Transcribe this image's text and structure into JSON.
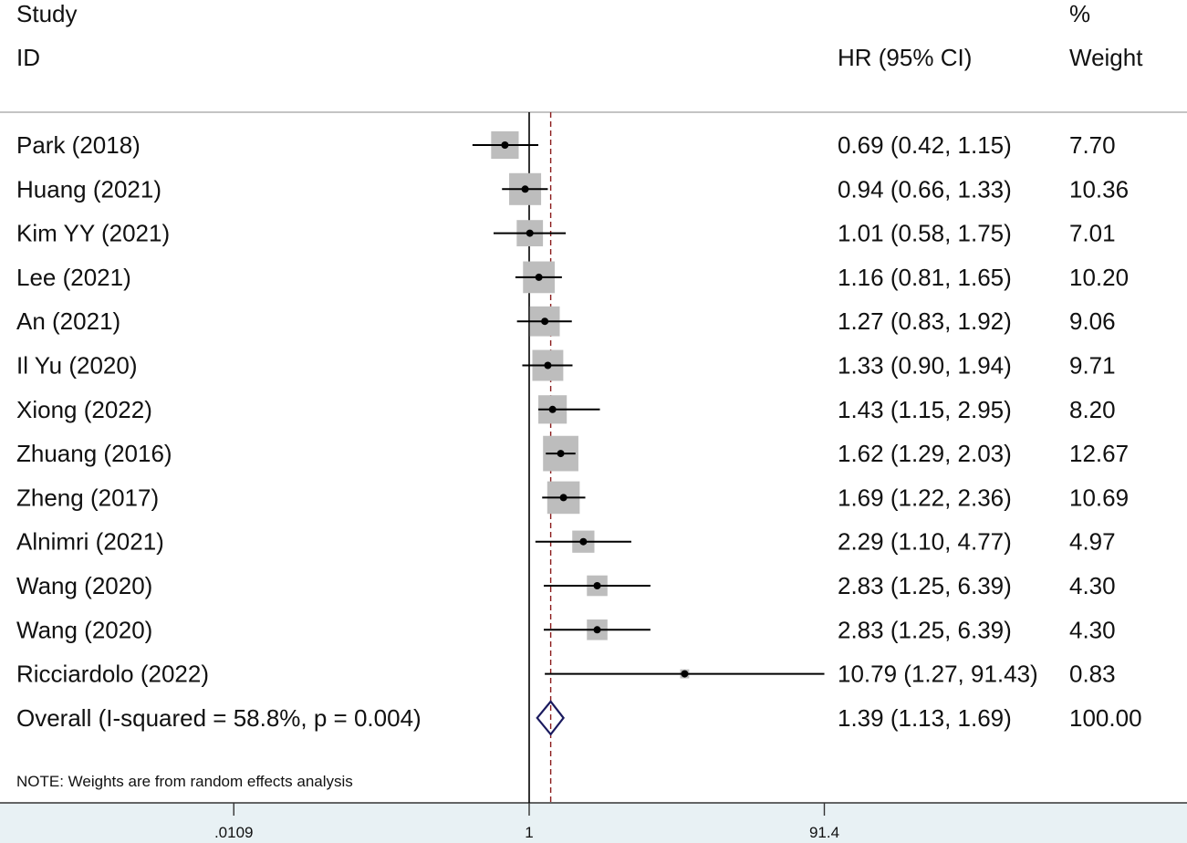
{
  "headers": {
    "study_line1": "Study",
    "study_line2": "ID",
    "effect": "HR (95% CI)",
    "weight_line1": "%",
    "weight_line2": "Weight"
  },
  "note": "NOTE: Weights are from random effects analysis",
  "colors": {
    "box": "#bdbdbd",
    "line": "#000000",
    "overall_diamond": "#1a1a5e",
    "pooled_dashed_line": "#8b1a1a",
    "axis_band": "#e8f1f4"
  },
  "chart_data": {
    "type": "forest",
    "scale": "log",
    "xlim": [
      0.0109,
      91.4
    ],
    "xticks": [
      ".0109",
      "1",
      "91.4"
    ],
    "studies": [
      {
        "label": "Park (2018)",
        "hr": 0.69,
        "lo": 0.42,
        "hi": 1.15,
        "ci_text": "0.69 (0.42, 1.15)",
        "weight": 7.7,
        "weight_text": "7.70"
      },
      {
        "label": "Huang (2021)",
        "hr": 0.94,
        "lo": 0.66,
        "hi": 1.33,
        "ci_text": "0.94 (0.66, 1.33)",
        "weight": 10.36,
        "weight_text": "10.36"
      },
      {
        "label": "Kim YY (2021)",
        "hr": 1.01,
        "lo": 0.58,
        "hi": 1.75,
        "ci_text": "1.01 (0.58, 1.75)",
        "weight": 7.01,
        "weight_text": "7.01"
      },
      {
        "label": "Lee (2021)",
        "hr": 1.16,
        "lo": 0.81,
        "hi": 1.65,
        "ci_text": "1.16 (0.81, 1.65)",
        "weight": 10.2,
        "weight_text": "10.20"
      },
      {
        "label": "An (2021)",
        "hr": 1.27,
        "lo": 0.83,
        "hi": 1.92,
        "ci_text": "1.27 (0.83, 1.92)",
        "weight": 9.06,
        "weight_text": "9.06"
      },
      {
        "label": "Il Yu (2020)",
        "hr": 1.33,
        "lo": 0.9,
        "hi": 1.94,
        "ci_text": "1.33 (0.90, 1.94)",
        "weight": 9.71,
        "weight_text": "9.71"
      },
      {
        "label": "Xiong (2022)",
        "hr": 1.43,
        "lo": 1.15,
        "hi": 2.95,
        "ci_text": "1.43 (1.15, 2.95)",
        "weight": 8.2,
        "weight_text": "8.20"
      },
      {
        "label": "Zhuang (2016)",
        "hr": 1.62,
        "lo": 1.29,
        "hi": 2.03,
        "ci_text": "1.62 (1.29, 2.03)",
        "weight": 12.67,
        "weight_text": "12.67"
      },
      {
        "label": "Zheng (2017)",
        "hr": 1.69,
        "lo": 1.22,
        "hi": 2.36,
        "ci_text": "1.69 (1.22, 2.36)",
        "weight": 10.69,
        "weight_text": "10.69"
      },
      {
        "label": "Alnimri (2021)",
        "hr": 2.29,
        "lo": 1.1,
        "hi": 4.77,
        "ci_text": "2.29 (1.10, 4.77)",
        "weight": 4.97,
        "weight_text": "4.97"
      },
      {
        "label": "Wang (2020)",
        "hr": 2.83,
        "lo": 1.25,
        "hi": 6.39,
        "ci_text": "2.83 (1.25, 6.39)",
        "weight": 4.3,
        "weight_text": "4.30"
      },
      {
        "label": "Wang (2020)",
        "hr": 2.83,
        "lo": 1.25,
        "hi": 6.39,
        "ci_text": "2.83 (1.25, 6.39)",
        "weight": 4.3,
        "weight_text": "4.30"
      },
      {
        "label": "Ricciardolo (2022)",
        "hr": 10.79,
        "lo": 1.27,
        "hi": 91.43,
        "ci_text": "10.79 (1.27, 91.43)",
        "weight": 0.83,
        "weight_text": "0.83"
      }
    ],
    "overall": {
      "label": "Overall  (I-squared = 58.8%, p = 0.004)",
      "hr": 1.39,
      "lo": 1.13,
      "hi": 1.69,
      "ci_text": "1.39 (1.13, 1.69)",
      "weight": 100.0,
      "weight_text": "100.00"
    }
  }
}
